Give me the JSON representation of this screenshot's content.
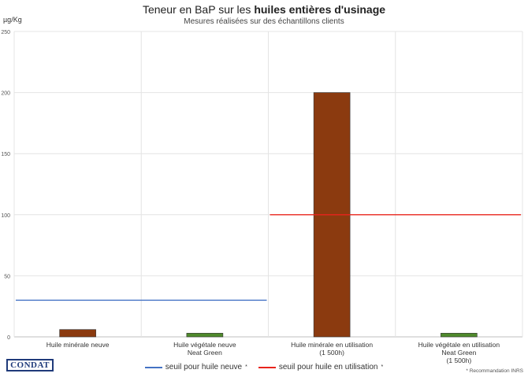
{
  "title": {
    "part1": "Teneur en BaP sur les ",
    "part2": "huiles entières d'usinage"
  },
  "subtitle": "Mesures réalisées sur des échantillons clients",
  "unit": "µg/Kg",
  "logo": "CONDAT",
  "footnote": "* Recommandation INRS",
  "legend": [
    {
      "label": "seuil pour huile neuve",
      "marker": "*",
      "color": "#4472c4"
    },
    {
      "label": "seuil pour huile en utilisation",
      "marker": "*",
      "color": "#e8241c"
    }
  ],
  "chart_data": {
    "type": "bar",
    "title": "Teneur en BaP sur les huiles entières d'usinage",
    "subtitle": "Mesures réalisées sur des échantillons clients",
    "ylabel": "µg/Kg",
    "ylim": [
      0,
      250
    ],
    "yticks": [
      0,
      50,
      100,
      150,
      200,
      250
    ],
    "grid": true,
    "legend_position": "bottom",
    "categories": [
      [
        "Huile minérale neuve"
      ],
      [
        "Huile végétale neuve",
        "Neat Green"
      ],
      [
        "Huile minérale en utilisation",
        "(1 500h)"
      ],
      [
        "Huile végétale en utilisation",
        "Neat Green",
        "(1 500h)"
      ]
    ],
    "values": [
      6,
      3,
      200,
      3
    ],
    "bar_colors": [
      "#8b3a0f",
      "#4f8a2c",
      "#8b3a0f",
      "#4f8a2c"
    ],
    "thresholds": [
      {
        "name": "seuil pour huile neuve",
        "value": 30,
        "categories": [
          0,
          1
        ],
        "color": "#4472c4"
      },
      {
        "name": "seuil pour huile en utilisation",
        "value": 100,
        "categories": [
          2,
          3
        ],
        "color": "#e8241c"
      }
    ]
  }
}
